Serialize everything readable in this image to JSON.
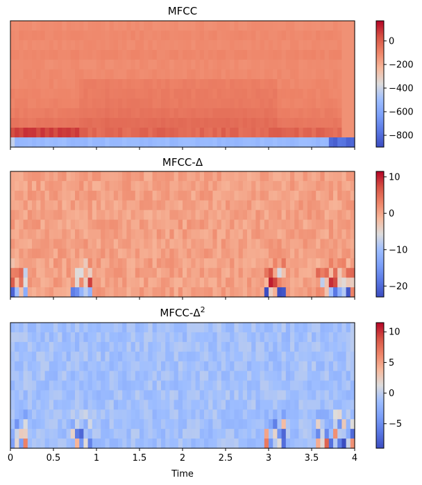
{
  "figure": {
    "xlabel": "Time"
  },
  "chart_data": [
    {
      "type": "heatmap",
      "title": "MFCC",
      "x_ticks": [
        "0",
        "0.5",
        "1",
        "1.5",
        "2",
        "2.5",
        "3",
        "3.5",
        "4"
      ],
      "x_tick_labels_shown": false,
      "xlim": [
        0,
        4
      ],
      "n_coefficients": 13,
      "colormap": "coolwarm",
      "colorbar_range": [
        -900,
        170
      ],
      "colorbar_ticks": [
        "0",
        "−200",
        "−400",
        "−600",
        "−800"
      ],
      "colorbar_values": [
        0,
        -200,
        -400,
        -600,
        -800
      ],
      "row_means": [
        -120,
        -110,
        -115,
        -105,
        -118,
        -112,
        -108,
        -100,
        -95,
        -80,
        -60,
        40,
        -520
      ]
    },
    {
      "type": "heatmap",
      "title": "MFCC-Δ",
      "x_ticks": [
        "0",
        "0.5",
        "1",
        "1.5",
        "2",
        "2.5",
        "3",
        "3.5",
        "4"
      ],
      "x_tick_labels_shown": false,
      "xlim": [
        0,
        4
      ],
      "n_coefficients": 13,
      "colormap": "coolwarm",
      "colorbar_range": [
        -23,
        11.5
      ],
      "colorbar_ticks": [
        "10",
        "0",
        "−10",
        "−20"
      ],
      "colorbar_values": [
        10,
        0,
        -10,
        -20
      ]
    },
    {
      "type": "heatmap",
      "title": "MFCC-Δ",
      "title_superscript": "2",
      "x_ticks": [
        "0",
        "0.5",
        "1",
        "1.5",
        "2",
        "2.5",
        "3",
        "3.5",
        "4"
      ],
      "x_tick_labels_shown": true,
      "xlim": [
        0,
        4
      ],
      "n_coefficients": 13,
      "colormap": "coolwarm",
      "colorbar_range": [
        -9,
        11.5
      ],
      "colorbar_ticks": [
        "10",
        "5",
        "0",
        "−5"
      ],
      "colorbar_values": [
        10,
        5,
        0,
        -5
      ]
    }
  ]
}
